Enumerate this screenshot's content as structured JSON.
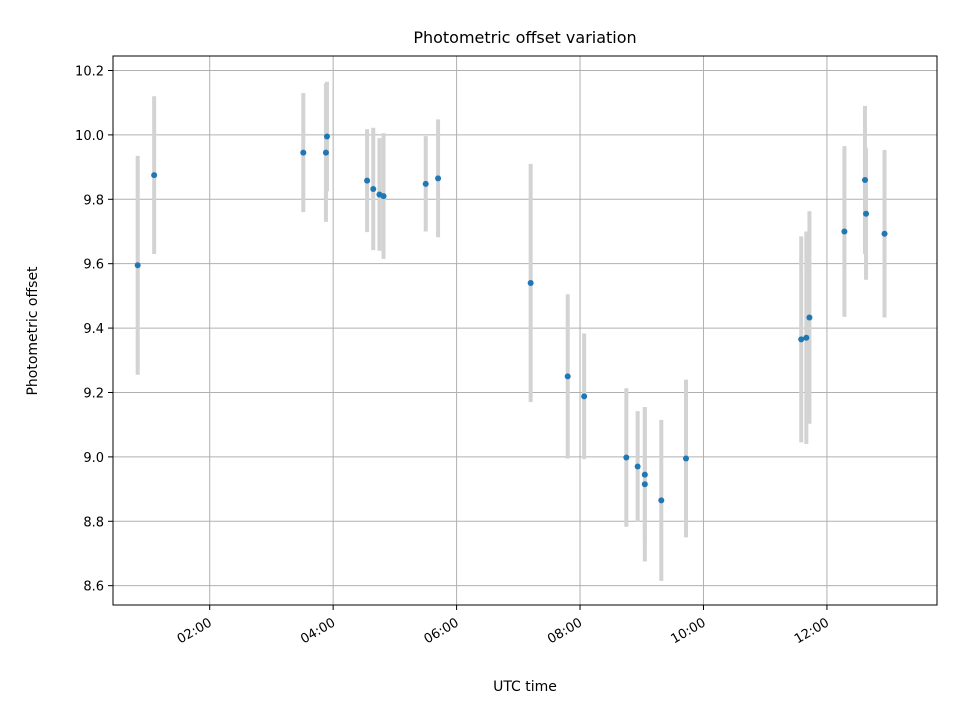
{
  "chart_data": {
    "type": "scatter",
    "title": "Photometric offset variation",
    "xlabel": "UTC time",
    "ylabel": "Photometric offset",
    "x_tick_labels": [
      "02:00",
      "04:00",
      "06:00",
      "08:00",
      "10:00",
      "12:00"
    ],
    "x_ticks": [
      "02:00",
      "04:00",
      "06:00",
      "08:00",
      "10:00",
      "12:00"
    ],
    "xlim": [
      "00:26",
      "13:47"
    ],
    "ylim": [
      8.54,
      10.245
    ],
    "y_ticks": [
      8.6,
      8.8,
      9.0,
      9.2,
      9.4,
      9.6,
      9.8,
      10.0,
      10.2
    ],
    "y_tick_labels": [
      "8.6",
      "8.8",
      "9.0",
      "9.2",
      "9.4",
      "9.6",
      "9.8",
      "10.0",
      "10.2"
    ],
    "grid": true,
    "colors": {
      "point": "#1f77b4",
      "errorbar": "#d3d3d3",
      "grid": "#b0b0b0"
    },
    "points": [
      {
        "x": "00:50",
        "y": 9.595,
        "err": 0.34
      },
      {
        "x": "01:06",
        "y": 9.875,
        "err": 0.245
      },
      {
        "x": "03:31",
        "y": 9.945,
        "err": 0.185
      },
      {
        "x": "03:53",
        "y": 9.945,
        "err": 0.215
      },
      {
        "x": "03:54",
        "y": 9.995,
        "err": 0.17
      },
      {
        "x": "04:33",
        "y": 9.858,
        "err": 0.16
      },
      {
        "x": "04:39",
        "y": 9.832,
        "err": 0.19
      },
      {
        "x": "04:45",
        "y": 9.815,
        "err": 0.175
      },
      {
        "x": "04:49",
        "y": 9.81,
        "err": 0.195
      },
      {
        "x": "05:30",
        "y": 9.848,
        "err": 0.148
      },
      {
        "x": "05:42",
        "y": 9.865,
        "err": 0.183
      },
      {
        "x": "07:12",
        "y": 9.54,
        "err": 0.37
      },
      {
        "x": "07:48",
        "y": 9.25,
        "err": 0.255
      },
      {
        "x": "08:04",
        "y": 9.188,
        "err": 0.195
      },
      {
        "x": "08:45",
        "y": 8.998,
        "err": 0.215
      },
      {
        "x": "08:56",
        "y": 8.97,
        "err": 0.172
      },
      {
        "x": "09:03",
        "y": 8.945,
        "err": 0.21
      },
      {
        "x": "09:03",
        "y": 8.915,
        "err": 0.24
      },
      {
        "x": "09:19",
        "y": 8.865,
        "err": 0.25
      },
      {
        "x": "09:43",
        "y": 8.995,
        "err": 0.245
      },
      {
        "x": "11:35",
        "y": 9.365,
        "err": 0.32
      },
      {
        "x": "11:40",
        "y": 9.37,
        "err": 0.33
      },
      {
        "x": "11:43",
        "y": 9.433,
        "err": 0.33
      },
      {
        "x": "12:17",
        "y": 9.7,
        "err": 0.265
      },
      {
        "x": "12:37",
        "y": 9.86,
        "err": 0.23
      },
      {
        "x": "12:38",
        "y": 9.755,
        "err": 0.205
      },
      {
        "x": "12:56",
        "y": 9.693,
        "err": 0.26
      }
    ]
  }
}
